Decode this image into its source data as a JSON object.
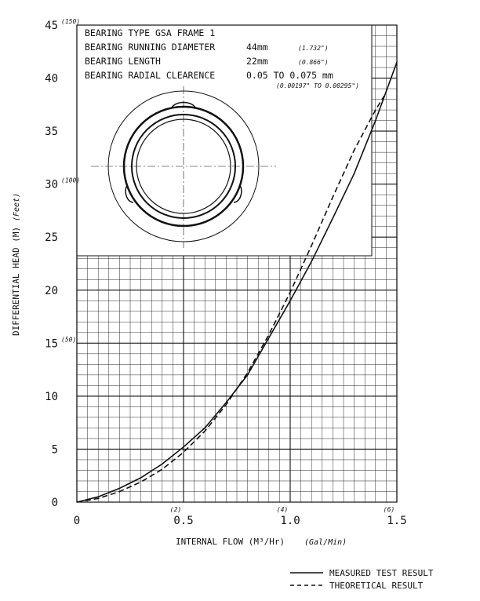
{
  "chart_data": {
    "type": "line",
    "xlabel": "INTERNAL FLOW (M³/Hr)",
    "xlabel_alt": "(Gal/Min)",
    "ylabel": "DIFFERENTIAL HEAD (M)",
    "ylabel_alt": "(Feet)",
    "xlim": [
      0,
      1.5
    ],
    "ylim": [
      0,
      45
    ],
    "x_ticks": [
      "0",
      "0.5",
      "1.0",
      "1.5"
    ],
    "x_tick_values": [
      0,
      0.5,
      1.0,
      1.5
    ],
    "y_ticks": [
      "0",
      "5",
      "10",
      "15",
      "20",
      "25",
      "30",
      "35",
      "40",
      "45"
    ],
    "y_tick_values": [
      0,
      5,
      10,
      15,
      20,
      25,
      30,
      35,
      40,
      45
    ],
    "x_alt_ticks": [
      "(2)",
      "(4)",
      "(6)"
    ],
    "x_alt_tick_values": [
      0.5,
      1.0,
      1.5
    ],
    "y_alt_ticks": [
      "(50)",
      "(100)",
      "(150)"
    ],
    "y_alt_tick_values": [
      15,
      30,
      45
    ],
    "grid": true,
    "legend_position": "bottom-right",
    "series": [
      {
        "name": "MEASURED TEST RESULT",
        "style": "solid",
        "x": [
          0,
          0.1,
          0.2,
          0.3,
          0.4,
          0.5,
          0.6,
          0.7,
          0.8,
          0.9,
          1.0,
          1.1,
          1.2,
          1.3,
          1.4,
          1.5
        ],
        "y": [
          0,
          0.5,
          1.3,
          2.3,
          3.6,
          5.2,
          7.0,
          9.4,
          12.0,
          15.5,
          19.0,
          22.7,
          26.8,
          31.0,
          36.0,
          41.5
        ]
      },
      {
        "name": "THEORETICAL RESULT",
        "style": "dashed",
        "x": [
          0,
          0.1,
          0.2,
          0.3,
          0.4,
          0.5,
          0.6,
          0.7,
          0.8,
          0.9,
          1.0,
          1.1,
          1.2,
          1.3,
          1.4,
          1.44
        ],
        "y": [
          0,
          0.35,
          1.0,
          1.9,
          3.1,
          4.7,
          6.7,
          9.2,
          12.2,
          15.8,
          19.8,
          24.2,
          28.8,
          33.2,
          37.0,
          38.3
        ]
      }
    ]
  },
  "info_box": {
    "line1": "BEARING TYPE GSA FRAME 1",
    "line2_label": "BEARING RUNNING DIAMETER",
    "line2_value": "44mm",
    "line2_alt": "(1.732\")",
    "line3_label": "BEARING LENGTH",
    "line3_value": "22mm",
    "line3_alt": "(0.866\")",
    "line4_label": "BEARING RADIAL CLEARENCE",
    "line4_value": "0.05 TO 0.075 mm",
    "line4_alt": "(0.00197\" TO 0.00295\")"
  }
}
